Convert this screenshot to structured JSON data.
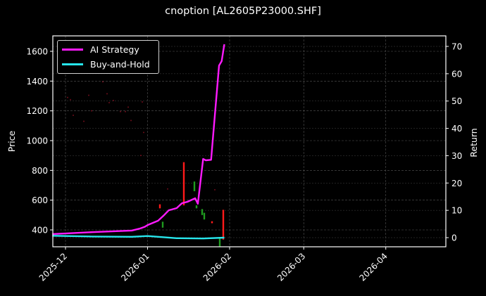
{
  "title": "cnoption [AL2605P23000.SHF]",
  "legend": [
    {
      "label": "AI Strategy",
      "color": "#ff1aff"
    },
    {
      "label": "Buy-and-Hold",
      "color": "#27e6ec"
    }
  ],
  "chart_data": {
    "type": "line",
    "title": "cnoption [AL2605P23000.SHF]",
    "xlabel": "",
    "ylabel": "Price",
    "ylabel_right": "Return",
    "x_ticks": [
      "2025-12",
      "2026-01",
      "2026-02",
      "2026-03",
      "2026-04"
    ],
    "y_ticks_left": [
      400,
      600,
      800,
      1000,
      1200,
      1400,
      1600
    ],
    "y_ticks_right": [
      0,
      10,
      20,
      30,
      40,
      50,
      60,
      70
    ],
    "ylim_left": [
      290,
      1700
    ],
    "ylim_right": [
      -3.3,
      73.5
    ],
    "xlim": [
      "2025-11-26",
      "2026-04-25"
    ],
    "grid": true,
    "legend_position": "upper left",
    "series": [
      {
        "name": "AI Strategy",
        "axis": "right",
        "color": "#ff1aff",
        "x": [
          "2025-11-26",
          "2025-12-11",
          "2025-12-26",
          "2025-12-29",
          "2025-12-31",
          "2026-01-01",
          "2026-01-05",
          "2026-01-07",
          "2026-01-09",
          "2026-01-12",
          "2026-01-14",
          "2026-01-16",
          "2026-01-19",
          "2026-01-20",
          "2026-01-22",
          "2026-01-23",
          "2026-01-25",
          "2026-01-28",
          "2026-01-29",
          "2026-01-30"
        ],
        "values": [
          1.3,
          2.0,
          2.6,
          3.3,
          4.0,
          4.6,
          6.2,
          8.0,
          10.0,
          10.8,
          12.6,
          13.1,
          14.4,
          12.4,
          28.8,
          28.3,
          28.5,
          63.0,
          64.6,
          70.8
        ]
      },
      {
        "name": "Buy-and-Hold",
        "axis": "right",
        "color": "#27e6ec",
        "x": [
          "2025-11-26",
          "2025-12-11",
          "2025-12-26",
          "2026-01-01",
          "2026-01-12",
          "2026-01-22",
          "2026-01-30"
        ],
        "values": [
          0.7,
          0.4,
          0.3,
          0.6,
          -0.2,
          -0.3,
          0.0
        ]
      }
    ],
    "candles": {
      "axis": "left",
      "up_color": "#1f9b1f",
      "down_color": "#ff1a1a",
      "items": [
        {
          "x": 227,
          "low": 545,
          "high": 572,
          "color": "down"
        },
        {
          "x": 231,
          "low": 415,
          "high": 455,
          "color": "up"
        },
        {
          "x": 261,
          "low": 565,
          "high": 855,
          "color": "down"
        },
        {
          "x": 276,
          "low": 660,
          "high": 725,
          "color": "up"
        },
        {
          "x": 279,
          "low": 545,
          "high": 565,
          "color": "up"
        },
        {
          "x": 287,
          "low": 500,
          "high": 540,
          "color": "up"
        },
        {
          "x": 290,
          "low": 470,
          "high": 515,
          "color": "up"
        },
        {
          "x": 301,
          "low": 445,
          "high": 458,
          "color": "down"
        },
        {
          "x": 312,
          "low": 285,
          "high": 345,
          "color": "up"
        },
        {
          "x": 317,
          "low": 335,
          "high": 535,
          "color": "down"
        }
      ]
    },
    "faint_markers": [
      {
        "x": 96,
        "price": 1290
      },
      {
        "x": 100,
        "price": 1275
      },
      {
        "x": 104,
        "price": 1170
      },
      {
        "x": 119,
        "price": 1130
      },
      {
        "x": 126,
        "price": 1305
      },
      {
        "x": 130,
        "price": 1200
      },
      {
        "x": 146,
        "price": 1395
      },
      {
        "x": 152,
        "price": 1315
      },
      {
        "x": 155,
        "price": 1255
      },
      {
        "x": 161,
        "price": 1270
      },
      {
        "x": 171,
        "price": 1195
      },
      {
        "x": 178,
        "price": 1195
      },
      {
        "x": 182,
        "price": 1225
      },
      {
        "x": 186,
        "price": 1135
      },
      {
        "x": 200,
        "price": 900
      },
      {
        "x": 202,
        "price": 1260
      },
      {
        "x": 204,
        "price": 1055
      },
      {
        "x": 238,
        "price": 675
      },
      {
        "x": 305,
        "price": 670
      }
    ]
  }
}
